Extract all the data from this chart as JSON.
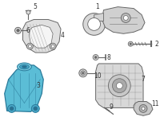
{
  "background_color": "#ffffff",
  "figsize": [
    2.0,
    1.47
  ],
  "dpi": 100,
  "line_color": "#666666",
  "text_color": "#333333",
  "font_size": 5.5,
  "blue_fill": "#5bbdd6",
  "blue_edge": "#2a7a9a",
  "gray_fill": "#cccccc",
  "gray_edge": "#666666",
  "dark_gray": "#999999"
}
